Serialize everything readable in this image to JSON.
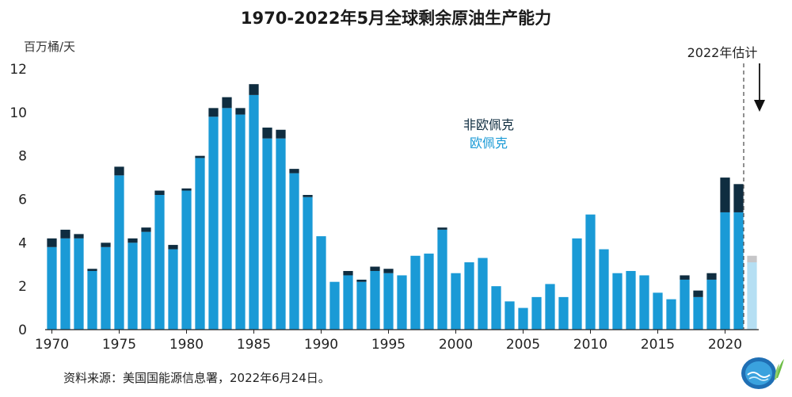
{
  "chart_data": {
    "type": "bar",
    "stacked": true,
    "title": "1970-2022年5月全球剩余原油生产能力",
    "ylabel": "百万桶/天",
    "ylim": [
      0,
      12
    ],
    "yticks": [
      0,
      2,
      4,
      6,
      8,
      10,
      12
    ],
    "xticks": [
      "1970",
      "1975",
      "1980",
      "1985",
      "1990",
      "1995",
      "2000",
      "2005",
      "2010",
      "2015",
      "2020"
    ],
    "grid": false,
    "legend_position": "center",
    "annotation": "2022年估计",
    "source": "资料来源：美国国能源信息署，2022年6月24日。",
    "categories": [
      1970,
      1971,
      1972,
      1973,
      1974,
      1975,
      1976,
      1977,
      1978,
      1979,
      1980,
      1981,
      1982,
      1983,
      1984,
      1985,
      1986,
      1987,
      1988,
      1989,
      1990,
      1991,
      1992,
      1993,
      1994,
      1995,
      1996,
      1997,
      1998,
      1999,
      2000,
      2001,
      2002,
      2003,
      2004,
      2005,
      2006,
      2007,
      2008,
      2009,
      2010,
      2011,
      2012,
      2013,
      2014,
      2015,
      2016,
      2017,
      2018,
      2019,
      2020,
      2021,
      2022
    ],
    "series": [
      {
        "name": "欧佩克",
        "color": "#1a9ad6",
        "values": [
          3.8,
          4.2,
          4.2,
          2.7,
          3.8,
          7.1,
          4.0,
          4.5,
          6.2,
          3.7,
          6.4,
          7.9,
          9.8,
          10.2,
          9.9,
          10.8,
          8.8,
          8.8,
          7.2,
          6.1,
          4.3,
          2.2,
          2.5,
          2.2,
          2.7,
          2.6,
          2.5,
          3.4,
          3.5,
          4.6,
          2.6,
          3.1,
          3.3,
          2.0,
          1.3,
          1.0,
          1.5,
          2.1,
          1.5,
          4.2,
          5.3,
          3.7,
          2.6,
          2.7,
          2.5,
          1.7,
          1.4,
          2.3,
          1.5,
          2.3,
          5.4,
          5.4,
          3.1
        ]
      },
      {
        "name": "非欧佩克",
        "color": "#0f2d40",
        "values": [
          0.4,
          0.4,
          0.2,
          0.1,
          0.2,
          0.4,
          0.2,
          0.2,
          0.2,
          0.2,
          0.1,
          0.1,
          0.4,
          0.5,
          0.3,
          0.5,
          0.5,
          0.4,
          0.2,
          0.1,
          0.0,
          0.0,
          0.2,
          0.1,
          0.2,
          0.2,
          0.0,
          0.0,
          0.0,
          0.1,
          0.0,
          0.0,
          0.0,
          0.0,
          0.0,
          0.0,
          0.0,
          0.0,
          0.0,
          0.0,
          0.0,
          0.0,
          0.0,
          0.0,
          0.0,
          0.0,
          0.0,
          0.2,
          0.3,
          0.3,
          1.6,
          1.3,
          0.3
        ]
      }
    ],
    "estimate_colors": {
      "opec": "#b5dff3",
      "non_opec": "#c6c6c8"
    },
    "estimate_category": 2022
  }
}
